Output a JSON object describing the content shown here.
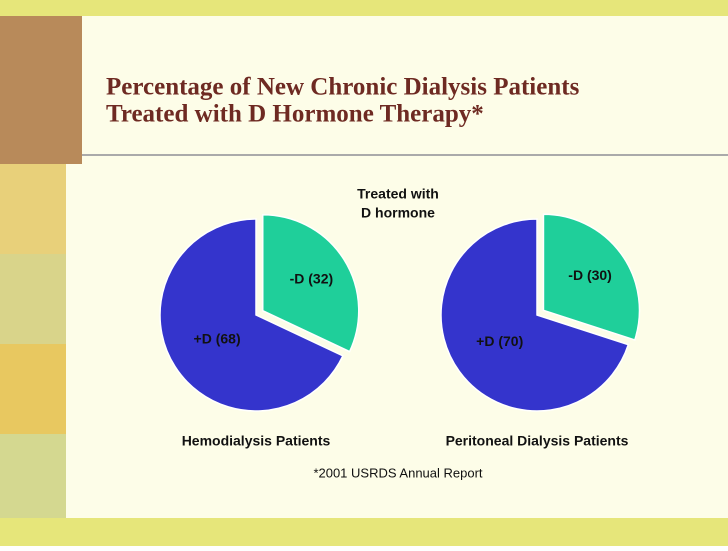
{
  "header": {
    "title": [
      "Percentage of New Chronic Dialysis Patients",
      "Treated with D Hormone Therapy*"
    ]
  },
  "annotation": [
    "Treated with",
    "D hormone"
  ],
  "footnote": "*2001 USRDS Annual Report",
  "chart_data": [
    {
      "type": "pie",
      "title": "Hemodialysis Patients",
      "values": [
        32,
        68
      ],
      "value_labels": [
        "-D (32)",
        "+D (68)"
      ],
      "colors": [
        "#1fcf9a",
        "#3434cc"
      ]
    },
    {
      "type": "pie",
      "title": "Peritoneal Dialysis Patients",
      "values": [
        30,
        70
      ],
      "value_labels": [
        "-D (30)",
        "+D (70)"
      ],
      "colors": [
        "#1fcf9a",
        "#3434cc"
      ]
    }
  ]
}
